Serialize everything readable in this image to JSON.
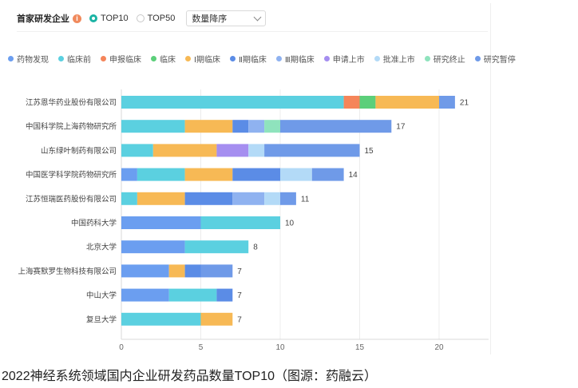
{
  "toolbar": {
    "title": "首家研发企业",
    "info_icon": "info-icon",
    "options": [
      "TOP10",
      "TOP50"
    ],
    "selected": "TOP10",
    "sort_select": "数量降序"
  },
  "caption": "2022神经系统领域国内企业研发药品数量TOP10（图源：药融云）",
  "chart_data": {
    "type": "bar",
    "orientation": "horizontal",
    "stacked": true,
    "title": "",
    "xlabel": "",
    "ylabel": "",
    "xlim": [
      0,
      22
    ],
    "xticks": [
      0,
      5,
      10,
      15,
      20
    ],
    "grid": true,
    "legend_position": "top",
    "categories": [
      "江苏恩华药业股份有限公司",
      "中国科学院上海药物研究所",
      "山东绿叶制药有限公司",
      "中国医学科学院药物研究所",
      "江苏恒瑞医药股份有限公司",
      "中国药科大学",
      "北京大学",
      "上海赛默罗生物科技有限公司",
      "中山大学",
      "复旦大学"
    ],
    "totals": [
      21,
      17,
      15,
      14,
      11,
      10,
      8,
      7,
      7,
      7
    ],
    "series": [
      {
        "name": "药物发现",
        "color": "#6b9ef0",
        "values": [
          0,
          0,
          0,
          1,
          0,
          5,
          4,
          3,
          3,
          0
        ]
      },
      {
        "name": "临床前",
        "color": "#5bd0e0",
        "values": [
          14,
          4,
          2,
          3,
          1,
          5,
          4,
          0,
          3,
          5
        ]
      },
      {
        "name": "申报临床",
        "color": "#f5855a",
        "values": [
          1,
          0,
          0,
          0,
          0,
          0,
          0,
          0,
          0,
          0
        ]
      },
      {
        "name": "临床",
        "color": "#5ccf7a",
        "values": [
          1,
          0,
          0,
          0,
          0,
          0,
          0,
          0,
          0,
          0
        ]
      },
      {
        "name": "Ⅰ期临床",
        "color": "#f7b955",
        "values": [
          4,
          3,
          4,
          3,
          3,
          0,
          0,
          1,
          0,
          2
        ]
      },
      {
        "name": "Ⅱ期临床",
        "color": "#5b8ce6",
        "values": [
          0,
          1,
          0,
          3,
          3,
          0,
          0,
          1,
          1,
          0
        ]
      },
      {
        "name": "Ⅲ期临床",
        "color": "#8fb2f0",
        "values": [
          0,
          1,
          0,
          0,
          2,
          0,
          0,
          0,
          0,
          0
        ]
      },
      {
        "name": "申请上市",
        "color": "#a58ef0",
        "values": [
          0,
          0,
          2,
          0,
          0,
          0,
          0,
          0,
          0,
          0
        ]
      },
      {
        "name": "批准上市",
        "color": "#b3daf7",
        "values": [
          0,
          0,
          1,
          2,
          1,
          0,
          0,
          0,
          0,
          0
        ]
      },
      {
        "name": "研究终止",
        "color": "#8fe3bd",
        "values": [
          0,
          1,
          0,
          0,
          0,
          0,
          0,
          0,
          0,
          0
        ]
      },
      {
        "name": "研究暂停",
        "color": "#6f9ae8",
        "values": [
          1,
          7,
          6,
          2,
          1,
          0,
          0,
          2,
          0,
          0
        ]
      }
    ]
  }
}
